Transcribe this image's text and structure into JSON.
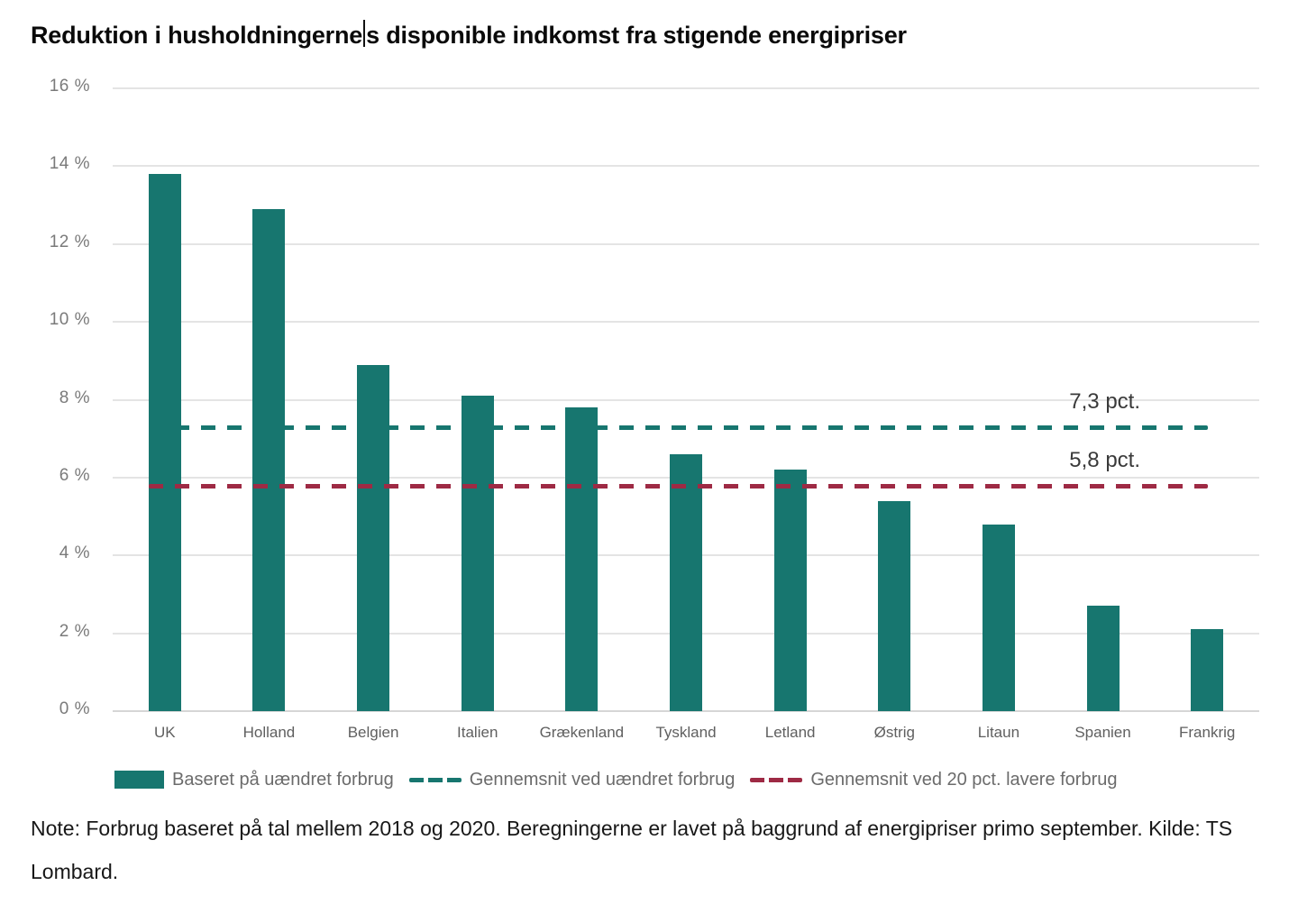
{
  "title_parts": {
    "before_cursor": "Reduktion i husholdningerne",
    "after_cursor": "s disponible indkomst fra stigende energipriser"
  },
  "chart_data": {
    "type": "bar",
    "title": "Reduktion i husholdningernes disponible indkomst fra stigende energipriser",
    "categories": [
      "UK",
      "Holland",
      "Belgien",
      "Italien",
      "Grækenland",
      "Tyskland",
      "Letland",
      "Østrig",
      "Litaun",
      "Spanien",
      "Frankrig"
    ],
    "values": [
      13.8,
      12.9,
      8.9,
      8.1,
      7.8,
      6.6,
      6.2,
      5.4,
      4.8,
      2.7,
      2.1
    ],
    "xlabel": "",
    "ylabel": "",
    "ylim": [
      0,
      16
    ],
    "ytick_step": 2,
    "yticks_bottom_to_top": [
      "0 %",
      "2 %",
      "4 %",
      "6 %",
      "8 %",
      "10 %",
      "12 %",
      "14 %",
      "16 %"
    ],
    "grid": true,
    "bar_color": "#17766f",
    "reference_lines": [
      {
        "value": 7.3,
        "label": "7,3 pct.",
        "color": "#17766f",
        "style": "dashed"
      },
      {
        "value": 5.8,
        "label": "5,8 pct.",
        "color": "#9e2a44",
        "style": "dashed"
      }
    ],
    "legend_position": "bottom",
    "legend": [
      {
        "label": "Baseret på uændret forbrug",
        "swatch": "fill",
        "color": "#17766f"
      },
      {
        "label": "Gennemsnit ved uændret forbrug",
        "swatch": "dashed",
        "color": "#17766f"
      },
      {
        "label": "Gennemsnit ved 20 pct. lavere forbrug",
        "swatch": "dashed",
        "color": "#9e2a44"
      }
    ]
  },
  "note": "Note: Forbrug baseret på tal mellem 2018 og 2020. Beregningerne er lavet på baggrund af energipriser primo september. Kilde: TS Lombard.",
  "colors": {
    "bar": "#17766f",
    "average_line": "#17766f",
    "average_20pct_line": "#9e2a44",
    "grid": "#e4e4e4",
    "axis_text": "#7a7a7a",
    "xlabel_text": "#5f5f5f",
    "legend_text": "#6b6b6b",
    "annotation_text": "#3a3a3a"
  }
}
